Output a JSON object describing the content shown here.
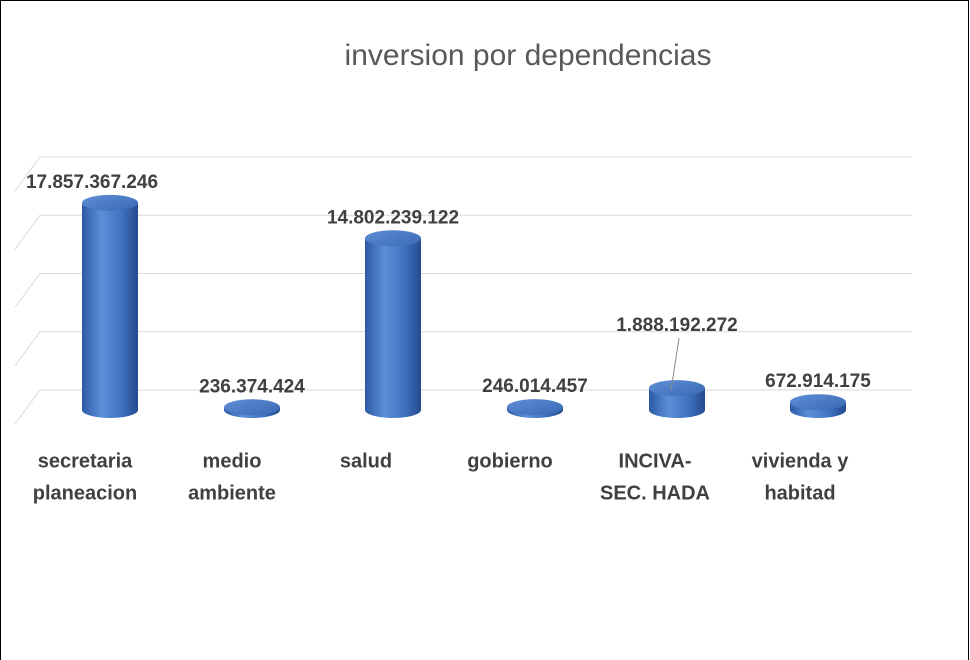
{
  "chart_data": {
    "type": "bar3d",
    "title": "inversion por dependencias",
    "categories": [
      [
        "secretaria",
        "planeacion"
      ],
      [
        "medio",
        "ambiente"
      ],
      [
        "salud"
      ],
      [
        "gobierno"
      ],
      [
        "INCIVA-",
        "SEC. HADA"
      ],
      [
        "vivienda y",
        "habitad"
      ]
    ],
    "values": [
      17857367246,
      236374424,
      14802239122,
      246014457,
      1888192272,
      672914175
    ],
    "value_labels": [
      "17.857.367.246",
      "236.374.424",
      "14.802.239.122",
      "246.014.457",
      "1.888.192.272",
      "672.914.175"
    ],
    "color": "#4472c4",
    "ylim": [
      0,
      20000000000
    ],
    "yticks": [
      0,
      5000000000,
      10000000000,
      15000000000,
      20000000000
    ],
    "grid": true
  }
}
